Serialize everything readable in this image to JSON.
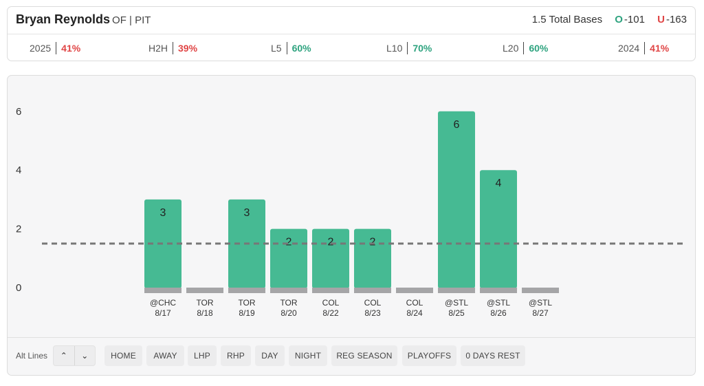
{
  "header": {
    "player_name": "Bryan Reynolds",
    "position_team": "OF | PIT",
    "prop_line": "1.5 Total Bases",
    "over_label": "O",
    "over_odds": "-101",
    "under_label": "U",
    "under_odds": "-163"
  },
  "stats": [
    {
      "label": "2025",
      "value": "41%",
      "color": "red"
    },
    {
      "label": "H2H",
      "value": "39%",
      "color": "red"
    },
    {
      "label": "L5",
      "value": "60%",
      "color": "green"
    },
    {
      "label": "L10",
      "value": "70%",
      "color": "green"
    },
    {
      "label": "L20",
      "value": "60%",
      "color": "green"
    },
    {
      "label": "2024",
      "value": "41%",
      "color": "red"
    }
  ],
  "colors": {
    "bar": "#46ba93",
    "bar_zero": "#a5a5a7",
    "line": "#777777",
    "red": "#e04545",
    "green": "#2ea37f"
  },
  "chart_data": {
    "type": "bar",
    "line": 1.5,
    "ylim": [
      0,
      6
    ],
    "yticks": [
      0,
      2,
      4,
      6
    ],
    "games": [
      {
        "opp": "@CHC",
        "date": "8/17",
        "value": 3
      },
      {
        "opp": "TOR",
        "date": "8/18",
        "value": 0
      },
      {
        "opp": "TOR",
        "date": "8/19",
        "value": 3
      },
      {
        "opp": "TOR",
        "date": "8/20",
        "value": 2
      },
      {
        "opp": "COL",
        "date": "8/22",
        "value": 2
      },
      {
        "opp": "COL",
        "date": "8/23",
        "value": 2
      },
      {
        "opp": "COL",
        "date": "8/24",
        "value": 0
      },
      {
        "opp": "@STL",
        "date": "8/25",
        "value": 6
      },
      {
        "opp": "@STL",
        "date": "8/26",
        "value": 4
      },
      {
        "opp": "@STL",
        "date": "8/27",
        "value": 0
      }
    ]
  },
  "filters": {
    "alt_lines_label": "Alt Lines",
    "up_icon": "chevron-up-icon",
    "down_icon": "chevron-down-icon",
    "up_glyph": "⌃",
    "down_glyph": "⌄",
    "chips": [
      "HOME",
      "AWAY",
      "LHP",
      "RHP",
      "DAY",
      "NIGHT",
      "REG SEASON",
      "PLAYOFFS",
      "0 DAYS REST"
    ]
  }
}
